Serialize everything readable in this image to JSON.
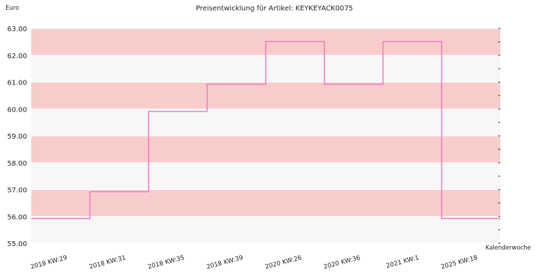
{
  "chart_data": {
    "type": "line",
    "step": true,
    "title": "Preisentwicklung für Artikel: KEYKEYACK0075",
    "ylabel": "Euro",
    "xlabel": "Kalenderwoche",
    "ylim": [
      55.0,
      63.0
    ],
    "yticks": [
      "55.00",
      "56.00",
      "57.00",
      "58.00",
      "59.00",
      "60.00",
      "61.00",
      "62.00",
      "63.00"
    ],
    "categories": [
      "2018 KW:29",
      "2018 KW:31",
      "2018 KW:35",
      "2018 KW:39",
      "2020 KW:26",
      "2020 KW:36",
      "2021 KW:1",
      "2025 KW:18"
    ],
    "series": [
      {
        "values": [
          55.92,
          56.92,
          59.91,
          60.92,
          62.51,
          60.92,
          62.51,
          55.92
        ]
      }
    ],
    "colors": {
      "line": "#f27bc3",
      "band_pink": "#f9cccc",
      "band_light": "#f7f7f7",
      "grid": "#ffffff"
    },
    "grid": true,
    "legend": "none"
  }
}
